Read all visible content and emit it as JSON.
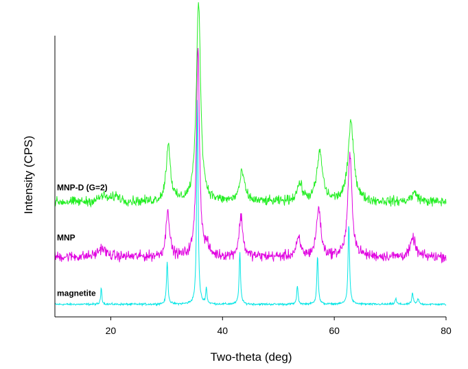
{
  "chart_data": {
    "type": "line",
    "title": "",
    "xlabel": "Two-theta (deg)",
    "ylabel": "Intensity (CPS)",
    "xlim": [
      10,
      80
    ],
    "ylim": [
      0,
      100
    ],
    "x_ticks": [
      20,
      40,
      60,
      80
    ],
    "x_tick_labels": [
      "20",
      "40",
      "60",
      "80"
    ],
    "y_ticks_shown": false,
    "grid": false,
    "legend": "none; series labeled directly above each trace on the left",
    "series": [
      {
        "name": "magnetite",
        "color": "#00e5e5",
        "baseline": 1.5,
        "noise": 0.25,
        "peaks": [
          {
            "x": 18.3,
            "height": 6.0,
            "width": 0.12
          },
          {
            "x": 30.1,
            "height": 15.0,
            "width": 0.15
          },
          {
            "x": 35.5,
            "height": 72.0,
            "width": 0.15
          },
          {
            "x": 37.1,
            "height": 5.5,
            "width": 0.13
          },
          {
            "x": 43.1,
            "height": 18.0,
            "width": 0.15
          },
          {
            "x": 53.4,
            "height": 6.5,
            "width": 0.14
          },
          {
            "x": 57.0,
            "height": 17.0,
            "width": 0.15
          },
          {
            "x": 62.6,
            "height": 28.0,
            "width": 0.16
          },
          {
            "x": 71.0,
            "height": 2.0,
            "width": 0.15
          },
          {
            "x": 74.0,
            "height": 4.0,
            "width": 0.15
          },
          {
            "x": 75.0,
            "height": 2.0,
            "width": 0.15
          }
        ]
      },
      {
        "name": "MNP",
        "color": "#e000e0",
        "baseline": 18.0,
        "noise": 1.3,
        "peaks": [
          {
            "x": 18.4,
            "height": 3.0,
            "width": 0.8
          },
          {
            "x": 30.2,
            "height": 17.0,
            "width": 0.35
          },
          {
            "x": 35.6,
            "height": 73.0,
            "width": 0.32
          },
          {
            "x": 37.2,
            "height": 3.0,
            "width": 0.4
          },
          {
            "x": 43.3,
            "height": 14.0,
            "width": 0.4
          },
          {
            "x": 53.6,
            "height": 6.0,
            "width": 0.45
          },
          {
            "x": 57.2,
            "height": 17.0,
            "width": 0.45
          },
          {
            "x": 62.8,
            "height": 35.0,
            "width": 0.45
          },
          {
            "x": 74.1,
            "height": 6.5,
            "width": 0.5
          }
        ]
      },
      {
        "name": "MNP-D (G=2)",
        "color": "#22ee22",
        "baseline": 37.0,
        "noise": 1.2,
        "peaks": [
          {
            "x": 18.6,
            "height": 2.0,
            "width": 0.8
          },
          {
            "x": 21.0,
            "height": 2.0,
            "width": 0.8
          },
          {
            "x": 30.3,
            "height": 20.0,
            "width": 0.45
          },
          {
            "x": 35.7,
            "height": 70.0,
            "width": 0.45
          },
          {
            "x": 43.5,
            "height": 10.0,
            "width": 0.55
          },
          {
            "x": 53.8,
            "height": 6.0,
            "width": 0.6
          },
          {
            "x": 57.4,
            "height": 17.0,
            "width": 0.6
          },
          {
            "x": 63.0,
            "height": 28.0,
            "width": 0.6
          },
          {
            "x": 74.4,
            "height": 3.0,
            "width": 0.7
          }
        ]
      }
    ]
  }
}
